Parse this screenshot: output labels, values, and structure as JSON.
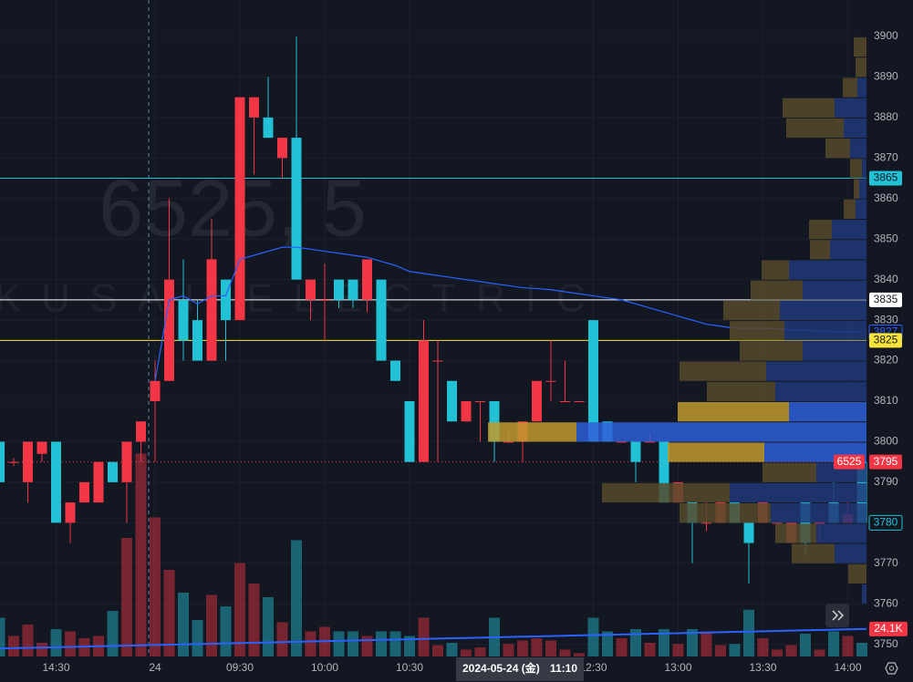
{
  "chart_data": {
    "type": "candlestick",
    "watermark": [
      "6525, 5",
      "KOKUSAI ELECTRIC"
    ],
    "categories": [
      null,
      null,
      null,
      null,
      "14:30",
      null,
      null,
      null,
      null,
      null,
      null,
      "24",
      null,
      null,
      null,
      null,
      null,
      "09:30",
      null,
      null,
      null,
      null,
      null,
      "10:00",
      null,
      null,
      null,
      null,
      null,
      "10:30",
      null,
      null,
      null,
      null,
      null,
      null,
      null,
      null,
      null,
      null,
      null,
      null,
      "12:30",
      null,
      null,
      null,
      null,
      null,
      "13:00",
      null,
      null,
      null,
      null,
      null,
      "13:30",
      null,
      null,
      null,
      null,
      null,
      "14:00",
      null
    ],
    "open": [
      3800,
      3795,
      3790,
      3797,
      3800,
      3780,
      3785,
      3785,
      3795,
      3790,
      3800,
      3810,
      3815,
      3835,
      3830,
      3820,
      3840,
      3830,
      3880,
      3880,
      3870,
      3875,
      3835,
      3835,
      3840,
      3840,
      3835,
      3840,
      3820,
      3810,
      3795,
      3820,
      3815,
      3805,
      3810,
      3810,
      3800,
      3800,
      3805,
      3815,
      3810,
      3810,
      3830,
      3805,
      3800,
      3800,
      3800,
      3800,
      3785,
      3785,
      3780,
      3780,
      3785,
      3780,
      3780,
      3780,
      3775,
      3785,
      3780,
      3785,
      3780,
      3795
    ],
    "high": [
      3802,
      3796,
      3800,
      3800,
      3800,
      3785,
      3790,
      3795,
      3795,
      3800,
      3805,
      3820,
      3860,
      3845,
      3835,
      3855,
      3840,
      3885,
      3885,
      3890,
      3875,
      3900,
      3840,
      3844,
      3840,
      3840,
      3845,
      3840,
      3820,
      3810,
      3830,
      3825,
      3815,
      3810,
      3810,
      3810,
      3802,
      3805,
      3815,
      3825,
      3820,
      3810,
      3830,
      3805,
      3800,
      3800,
      3802,
      3800,
      3790,
      3785,
      3785,
      3785,
      3785,
      3780,
      3785,
      3780,
      3780,
      3785,
      3780,
      3790,
      3785,
      3795
    ],
    "low": [
      3790,
      3794,
      3785,
      3795,
      3780,
      3775,
      3785,
      3785,
      3790,
      3780,
      3795,
      3795,
      3815,
      3820,
      3820,
      3820,
      3820,
      3830,
      3866,
      3875,
      3865,
      3840,
      3830,
      3825,
      3833,
      3833,
      3832,
      3820,
      3815,
      3795,
      3795,
      3795,
      3805,
      3805,
      3800,
      3795,
      3800,
      3795,
      3805,
      3810,
      3810,
      3810,
      3800,
      3800,
      3800,
      3790,
      3800,
      3785,
      3785,
      3770,
      3778,
      3780,
      3780,
      3765,
      3780,
      3780,
      3775,
      3772,
      3775,
      3780,
      3780,
      3780
    ],
    "close": [
      3790,
      3795,
      3800,
      3800,
      3780,
      3785,
      3790,
      3795,
      3790,
      3800,
      3805,
      3815,
      3840,
      3825,
      3820,
      3845,
      3830,
      3885,
      3885,
      3875,
      3875,
      3840,
      3840,
      3835,
      3835,
      3835,
      3845,
      3820,
      3815,
      3795,
      3825,
      3820,
      3805,
      3810,
      3810,
      3800,
      3800,
      3805,
      3815,
      3815,
      3810,
      3810,
      3800,
      3800,
      3800,
      3795,
      3800,
      3785,
      3790,
      3780,
      3780,
      3785,
      3780,
      3775,
      3785,
      3780,
      3780,
      3775,
      3780,
      3780,
      3782,
      3780
    ],
    "up_color": "#f23645",
    "down_color": "#22c1d6",
    "ylim": [
      3747,
      3909
    ],
    "yticks": [
      3750,
      3760,
      3770,
      3780,
      3790,
      3800,
      3810,
      3820,
      3830,
      3840,
      3850,
      3860,
      3870,
      3880,
      3890,
      3900
    ],
    "grid": true,
    "volume": {
      "values": [
        34,
        18,
        28,
        12,
        24,
        22,
        16,
        18,
        40,
        104,
        178,
        122,
        76,
        56,
        32,
        54,
        44,
        82,
        64,
        52,
        30,
        102,
        22,
        26,
        22,
        22,
        18,
        22,
        22,
        18,
        34,
        10,
        12,
        6,
        8,
        34,
        11,
        14,
        16,
        14,
        6,
        3,
        34,
        22,
        16,
        24,
        12,
        24,
        11,
        24,
        22,
        10,
        11,
        41,
        16,
        6,
        10,
        20,
        6,
        22,
        18,
        12
      ],
      "ylim": [
        0,
        240
      ]
    },
    "volume_ma": {
      "values": [
        7.0,
        7.3,
        7.6,
        7.8,
        8.1,
        8.4,
        8.7,
        9.0,
        9.2,
        9.5,
        9.8,
        10.1,
        10.4,
        10.6,
        10.9,
        11.2,
        11.5,
        11.8,
        12.0,
        12.3,
        12.6,
        12.9,
        13.2,
        13.4,
        13.7,
        14.0,
        14.3,
        14.6,
        14.8,
        15.1,
        15.4,
        15.7,
        16.0,
        16.2,
        16.5,
        16.8,
        17.1,
        17.4,
        17.6,
        17.9,
        18.2,
        18.5,
        18.8,
        19.0,
        19.3,
        19.6,
        19.9,
        20.2,
        20.4,
        20.7,
        21.0,
        21.3,
        21.6,
        21.8,
        22.1,
        22.4,
        22.7,
        23.0,
        23.2,
        23.5,
        23.8,
        24.1
      ],
      "value_label": "24.1K",
      "color": "#2962ff"
    },
    "vwap": {
      "values": [
        null,
        null,
        null,
        null,
        null,
        null,
        null,
        null,
        null,
        null,
        null,
        3815,
        3835,
        3836,
        3834,
        3836,
        3836,
        3845,
        3846,
        3847,
        3848,
        3848,
        3847.5,
        3847,
        3846.5,
        3846,
        3845.5,
        3844.5,
        3843.5,
        3842,
        3841.5,
        3841,
        3840.5,
        3840,
        3839.5,
        3839,
        3838.5,
        3838,
        3837.8,
        3837.5,
        3837,
        3836.5,
        3836,
        3835.5,
        3835,
        3834,
        3833,
        3832,
        3831,
        3830,
        3829,
        3828.5,
        3828,
        3828,
        3828,
        3827.8,
        3827.6,
        3827.5,
        3827.3,
        3827.2,
        3827.1,
        3827
      ],
      "color": "#2962ff"
    },
    "price_lines": [
      {
        "price": 3865,
        "color": "#22c1d6"
      },
      {
        "price": 3835,
        "color": "#ffffff"
      },
      {
        "price": 3825,
        "color": "#f5e33b"
      }
    ],
    "prev_close": {
      "symbol": "6525",
      "price": 3795,
      "color": "#f23645"
    },
    "volume_profile": {
      "prices": [
        3760,
        3765,
        3770,
        3775,
        3780,
        3785,
        3790,
        3795,
        3800,
        3805,
        3810,
        3815,
        3820,
        3825,
        3830,
        3835,
        3840,
        3845,
        3850,
        3855,
        3860,
        3865,
        3870,
        3875,
        3880,
        3885,
        3890,
        3895
      ],
      "up": [
        5,
        0,
        35,
        55,
        105,
        150,
        55,
        112,
        318,
        85,
        100,
        110,
        70,
        90,
        95,
        70,
        85,
        40,
        38,
        12,
        8,
        5,
        18,
        25,
        35,
        10,
        0,
        0
      ],
      "down": [
        0,
        20,
        47,
        45,
        100,
        140,
        59,
        106,
        97,
        122,
        75,
        95,
        69,
        60,
        62,
        57,
        30,
        22,
        25,
        13,
        6,
        13,
        27,
        63,
        57,
        16,
        12,
        14
      ],
      "xlim": [
        0,
        420
      ],
      "value_area": [
        3795,
        3805
      ],
      "up_color": "#213778",
      "down_color": "#574a2c",
      "va_up_color": "#2f5fd8",
      "va_down_color": "#c09a2e"
    },
    "crosshair": {
      "date": "2024-05-24 (金)",
      "time": "11:10"
    }
  }
}
